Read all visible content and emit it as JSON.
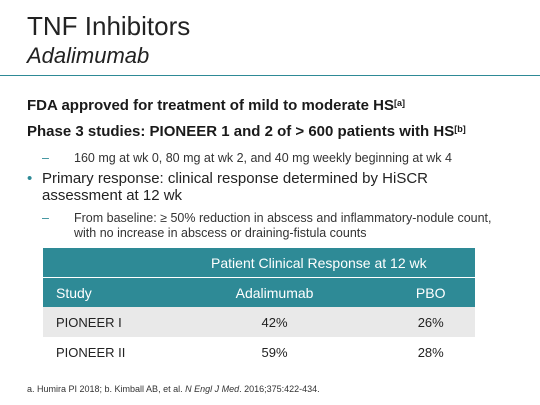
{
  "slide": {
    "title": "TNF Inhibitors",
    "subtitle": "Adalimumab",
    "bullet1": {
      "text": "FDA approved for treatment of mild to moderate HS",
      "ref": "[a]"
    },
    "bullet2": {
      "text": "Phase 3 studies: PIONEER 1 and 2 of > 600 patients with HS",
      "ref": "[b]"
    },
    "sub1": "160 mg at wk 0, 80 mg at wk 2, and 40 mg weekly beginning at wk 4",
    "bullet3": "Primary response: clinical response determined by HiSCR assessment at 12 wk",
    "sub2": "From baseline: ≥ 50% reduction in abscess and inflammatory-nodule count, with no increase in abscess or draining-fistula counts",
    "dash": "–",
    "dot": "•"
  },
  "table": {
    "group_header": "Patient Clinical Response at 12 wk",
    "headers": [
      "Study",
      "Adalimumab",
      "PBO"
    ],
    "rows": [
      [
        "PIONEER I",
        "42%",
        "26%"
      ],
      [
        "PIONEER II",
        "59%",
        "28%"
      ]
    ]
  },
  "footnote": {
    "pre": "a. Humira PI 2018; b. Kimball AB, et al. ",
    "journal": "N Engl J Med",
    "post": ". 2016;375:422-434."
  }
}
